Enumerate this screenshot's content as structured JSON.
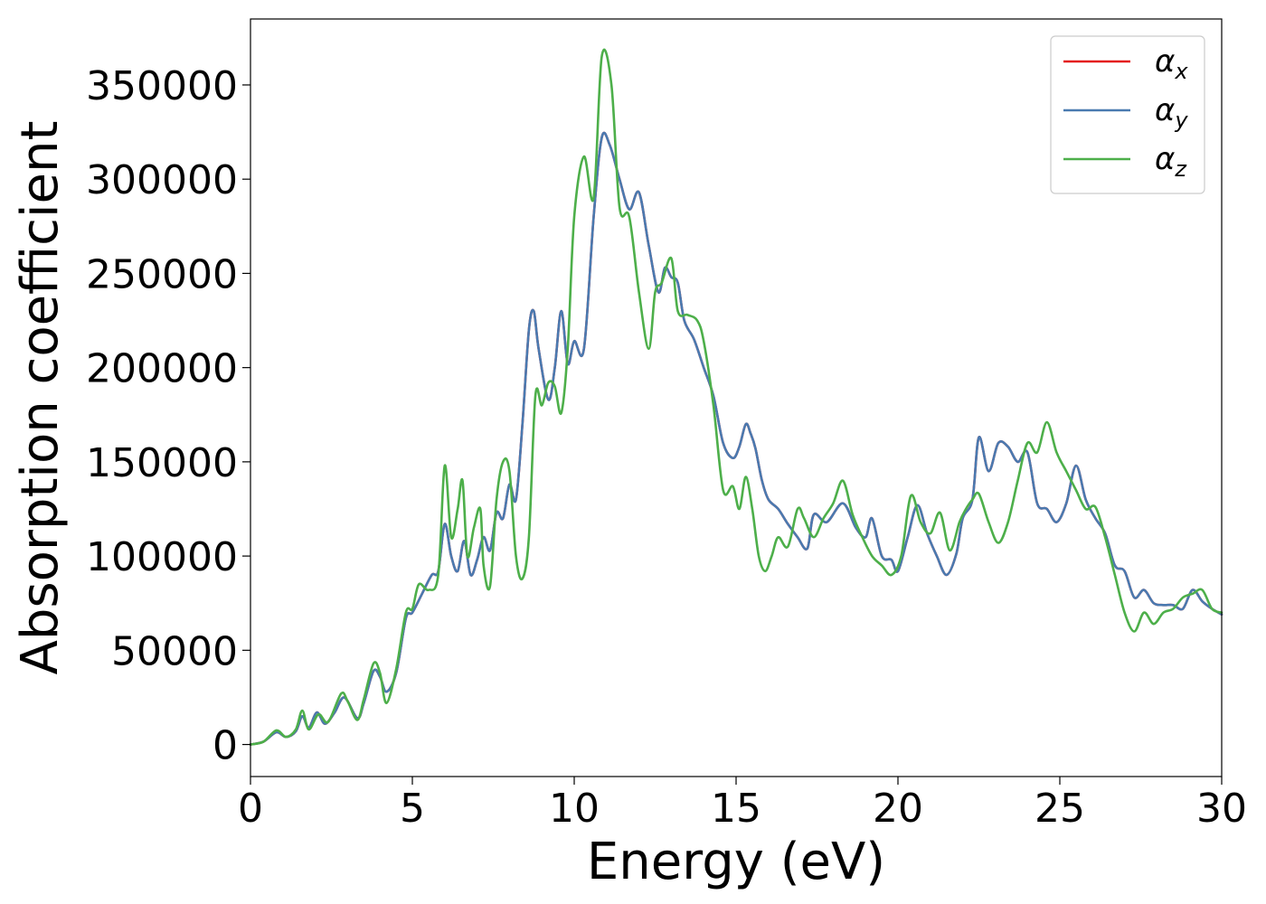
{
  "chart_data": {
    "type": "line",
    "title": "",
    "xlabel": "Energy (eV)",
    "ylabel": "Absorption coefficient",
    "xlim": [
      0,
      30
    ],
    "ylim": [
      -17000,
      385000
    ],
    "xticks": [
      0,
      5,
      10,
      15,
      20,
      25,
      30
    ],
    "xtick_labels": [
      "0",
      "5",
      "10",
      "15",
      "20",
      "25",
      "30"
    ],
    "yticks": [
      0,
      50000,
      100000,
      150000,
      200000,
      250000,
      300000,
      350000
    ],
    "ytick_labels": [
      "0",
      "50000",
      "100000",
      "150000",
      "200000",
      "250000",
      "300000",
      "350000"
    ],
    "grid": false,
    "legend_position": "top-right",
    "series": [
      {
        "name": "α",
        "subscript": "x",
        "color": "#e41a1c",
        "x": [
          0,
          0.4,
          0.8,
          1.1,
          1.4,
          1.6,
          1.8,
          2.05,
          2.3,
          2.6,
          2.9,
          3.3,
          3.5,
          3.8,
          4.0,
          4.2,
          4.5,
          4.8,
          5.0,
          5.3,
          5.6,
          5.8,
          6.0,
          6.2,
          6.4,
          6.6,
          6.8,
          7.0,
          7.2,
          7.4,
          7.6,
          7.8,
          8.0,
          8.2,
          8.4,
          8.6,
          8.75,
          8.9,
          9.2,
          9.4,
          9.6,
          9.8,
          10.0,
          10.3,
          10.6,
          10.85,
          11.1,
          11.4,
          11.7,
          12.0,
          12.3,
          12.6,
          12.8,
          13.0,
          13.2,
          13.4,
          13.7,
          14.0,
          14.3,
          14.6,
          14.9,
          15.1,
          15.3,
          15.45,
          15.6,
          15.8,
          16.0,
          16.3,
          16.6,
          16.9,
          17.2,
          17.4,
          17.8,
          18.3,
          18.7,
          19.0,
          19.2,
          19.5,
          19.8,
          20.0,
          20.3,
          20.6,
          20.9,
          21.2,
          21.5,
          21.8,
          22.0,
          22.3,
          22.5,
          22.8,
          23.1,
          23.4,
          23.7,
          24.0,
          24.3,
          24.6,
          24.9,
          25.2,
          25.5,
          25.8,
          26.1,
          26.4,
          26.7,
          27.0,
          27.3,
          27.6,
          27.9,
          28.2,
          28.5,
          28.8,
          29.1,
          29.4,
          29.7,
          30.0
        ],
        "y": [
          0,
          1500,
          6500,
          4000,
          7000,
          15000,
          9000,
          17000,
          11000,
          17000,
          25000,
          14000,
          22000,
          39000,
          36000,
          28000,
          38000,
          67000,
          70000,
          80000,
          90000,
          92000,
          117000,
          100000,
          92000,
          108000,
          90000,
          98000,
          110000,
          103000,
          123000,
          120000,
          138000,
          130000,
          170000,
          220000,
          230000,
          210000,
          183000,
          200000,
          230000,
          202000,
          214000,
          210000,
          280000,
          322000,
          318000,
          300000,
          284000,
          293000,
          265000,
          240000,
          253000,
          248000,
          245000,
          225000,
          215000,
          200000,
          185000,
          160000,
          152000,
          158000,
          170000,
          165000,
          157000,
          140000,
          130000,
          125000,
          117000,
          110000,
          104000,
          122000,
          118000,
          128000,
          115000,
          110000,
          120000,
          100000,
          98000,
          92000,
          110000,
          127000,
          112000,
          100000,
          90000,
          101000,
          120000,
          130000,
          163000,
          145000,
          160000,
          158000,
          150000,
          155000,
          128000,
          125000,
          118000,
          128000,
          148000,
          130000,
          120000,
          112000,
          95000,
          92000,
          78000,
          82000,
          75000,
          74000,
          74000,
          72000,
          82000,
          76000,
          72000,
          69000
        ]
      },
      {
        "name": "α",
        "subscript": "y",
        "color": "#4a7ab0",
        "x": [
          0,
          0.4,
          0.8,
          1.1,
          1.4,
          1.6,
          1.8,
          2.05,
          2.3,
          2.6,
          2.9,
          3.3,
          3.5,
          3.8,
          4.0,
          4.2,
          4.5,
          4.8,
          5.0,
          5.3,
          5.6,
          5.8,
          6.0,
          6.2,
          6.4,
          6.6,
          6.8,
          7.0,
          7.2,
          7.4,
          7.6,
          7.8,
          8.0,
          8.2,
          8.4,
          8.6,
          8.75,
          8.9,
          9.2,
          9.4,
          9.6,
          9.8,
          10.0,
          10.3,
          10.6,
          10.85,
          11.1,
          11.4,
          11.7,
          12.0,
          12.3,
          12.6,
          12.8,
          13.0,
          13.2,
          13.4,
          13.7,
          14.0,
          14.3,
          14.6,
          14.9,
          15.1,
          15.3,
          15.45,
          15.6,
          15.8,
          16.0,
          16.3,
          16.6,
          16.9,
          17.2,
          17.4,
          17.8,
          18.3,
          18.7,
          19.0,
          19.2,
          19.5,
          19.8,
          20.0,
          20.3,
          20.6,
          20.9,
          21.2,
          21.5,
          21.8,
          22.0,
          22.3,
          22.5,
          22.8,
          23.1,
          23.4,
          23.7,
          24.0,
          24.3,
          24.6,
          24.9,
          25.2,
          25.5,
          25.8,
          26.1,
          26.4,
          26.7,
          27.0,
          27.3,
          27.6,
          27.9,
          28.2,
          28.5,
          28.8,
          29.1,
          29.4,
          29.7,
          30.0
        ],
        "y": [
          0,
          1500,
          6500,
          4000,
          7000,
          15000,
          9000,
          17000,
          11000,
          17000,
          25000,
          14000,
          22000,
          39000,
          36000,
          28000,
          38000,
          67000,
          70000,
          80000,
          90000,
          92000,
          117000,
          100000,
          92000,
          108000,
          90000,
          98000,
          110000,
          103000,
          123000,
          120000,
          138000,
          130000,
          170000,
          220000,
          230000,
          210000,
          183000,
          200000,
          230000,
          202000,
          214000,
          210000,
          280000,
          322000,
          318000,
          300000,
          284000,
          293000,
          265000,
          240000,
          253000,
          248000,
          245000,
          225000,
          215000,
          200000,
          185000,
          160000,
          152000,
          158000,
          170000,
          165000,
          157000,
          140000,
          130000,
          125000,
          117000,
          110000,
          104000,
          122000,
          118000,
          128000,
          115000,
          110000,
          120000,
          100000,
          98000,
          92000,
          110000,
          127000,
          112000,
          100000,
          90000,
          101000,
          120000,
          130000,
          163000,
          145000,
          160000,
          158000,
          150000,
          155000,
          128000,
          125000,
          118000,
          128000,
          148000,
          130000,
          120000,
          112000,
          95000,
          92000,
          78000,
          82000,
          75000,
          74000,
          74000,
          72000,
          82000,
          76000,
          72000,
          69000
        ]
      },
      {
        "name": "α",
        "subscript": "z",
        "color": "#4daf4a",
        "x": [
          0,
          0.4,
          0.8,
          1.1,
          1.4,
          1.6,
          1.8,
          2.1,
          2.4,
          2.8,
          3.0,
          3.3,
          3.5,
          3.8,
          4.0,
          4.2,
          4.5,
          4.8,
          5.0,
          5.2,
          5.5,
          5.8,
          6.0,
          6.2,
          6.4,
          6.55,
          6.7,
          6.9,
          7.1,
          7.2,
          7.4,
          7.6,
          7.8,
          8.0,
          8.2,
          8.4,
          8.6,
          8.8,
          9.0,
          9.2,
          9.4,
          9.6,
          9.8,
          10.0,
          10.3,
          10.6,
          10.85,
          11.15,
          11.4,
          11.7,
          12.0,
          12.3,
          12.5,
          12.7,
          13.0,
          13.2,
          13.5,
          13.8,
          14.0,
          14.3,
          14.6,
          14.9,
          15.1,
          15.3,
          15.5,
          15.7,
          15.9,
          16.1,
          16.3,
          16.6,
          16.9,
          17.1,
          17.4,
          17.7,
          18.0,
          18.3,
          18.6,
          18.9,
          19.2,
          19.5,
          19.8,
          20.1,
          20.4,
          20.7,
          21.0,
          21.3,
          21.6,
          21.9,
          22.1,
          22.3,
          22.5,
          22.8,
          23.1,
          23.4,
          23.7,
          24.0,
          24.3,
          24.6,
          24.9,
          25.2,
          25.5,
          25.8,
          26.1,
          26.4,
          26.7,
          27.0,
          27.3,
          27.6,
          27.9,
          28.2,
          28.5,
          28.8,
          29.1,
          29.4,
          29.7,
          30.0
        ],
        "y": [
          0,
          1500,
          7500,
          4000,
          8000,
          18000,
          8000,
          16000,
          12000,
          27000,
          23000,
          13000,
          24000,
          43000,
          38000,
          22000,
          40000,
          70000,
          72000,
          85000,
          82000,
          90000,
          148000,
          110000,
          125000,
          140000,
          100000,
          115000,
          125000,
          95000,
          84000,
          130000,
          150000,
          145000,
          100000,
          88000,
          110000,
          185000,
          180000,
          192000,
          190000,
          176000,
          210000,
          280000,
          312000,
          290000,
          365000,
          350000,
          285000,
          280000,
          240000,
          210000,
          240000,
          245000,
          258000,
          230000,
          228000,
          225000,
          214000,
          180000,
          135000,
          137000,
          125000,
          142000,
          125000,
          100000,
          92000,
          100000,
          110000,
          105000,
          125000,
          120000,
          110000,
          120000,
          128000,
          140000,
          122000,
          110000,
          100000,
          95000,
          90000,
          100000,
          132000,
          118000,
          112000,
          123000,
          103000,
          118000,
          125000,
          130000,
          133000,
          118000,
          107000,
          118000,
          140000,
          160000,
          155000,
          171000,
          155000,
          145000,
          135000,
          125000,
          126000,
          110000,
          90000,
          70000,
          60000,
          70000,
          64000,
          70000,
          72000,
          78000,
          80000,
          82000,
          72000,
          70000
        ]
      }
    ]
  }
}
